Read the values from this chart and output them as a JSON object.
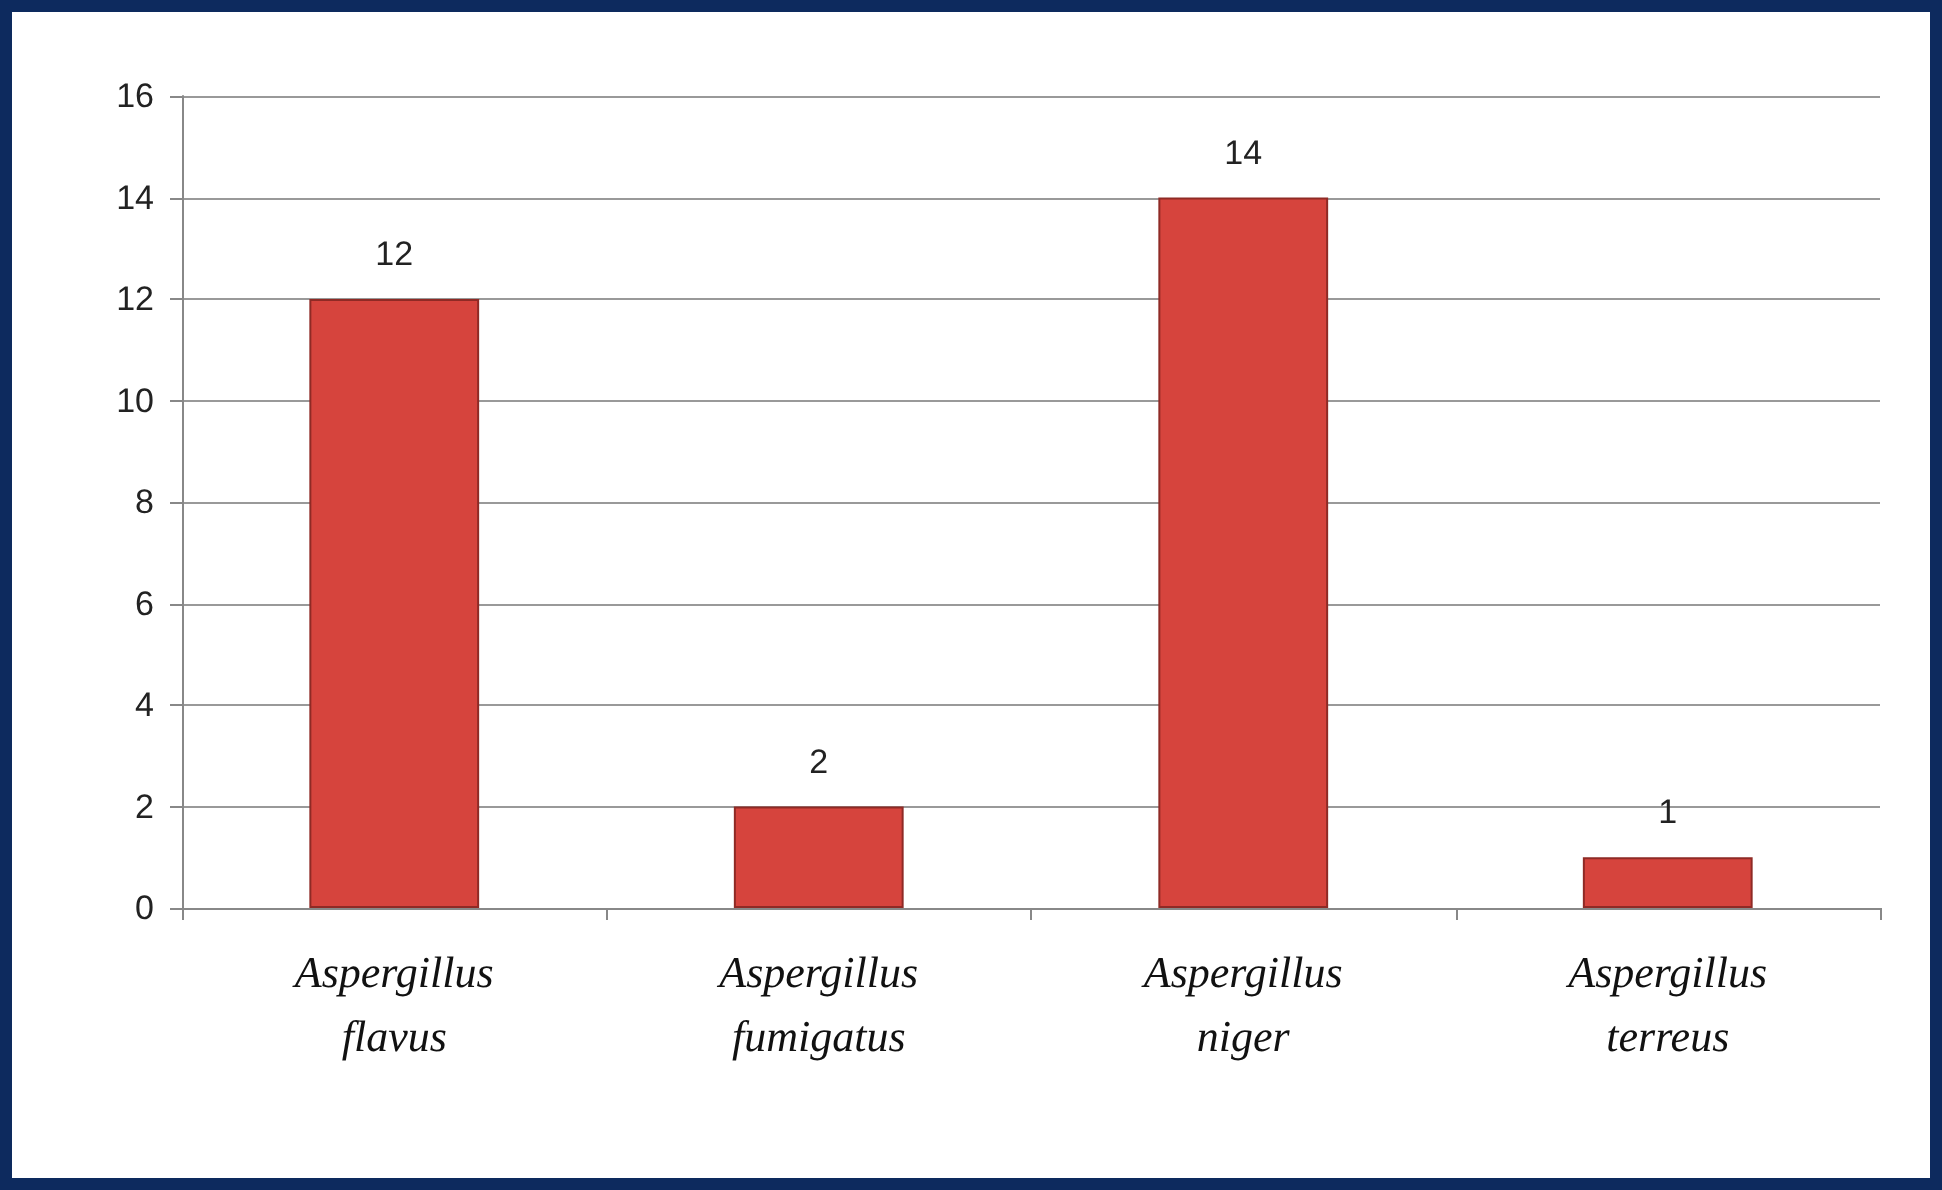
{
  "chart_data": {
    "type": "bar",
    "categories": [
      "Aspergillus flavus",
      "Aspergillus fumigatus",
      "Aspergillus niger",
      "Aspergillus terreus"
    ],
    "values": [
      12,
      2,
      14,
      1
    ],
    "color": "#d6443d",
    "ylim": [
      0,
      16
    ],
    "yticks": [
      0,
      2,
      4,
      6,
      8,
      10,
      12,
      14,
      16
    ],
    "grid": "y",
    "data_labels": true
  }
}
